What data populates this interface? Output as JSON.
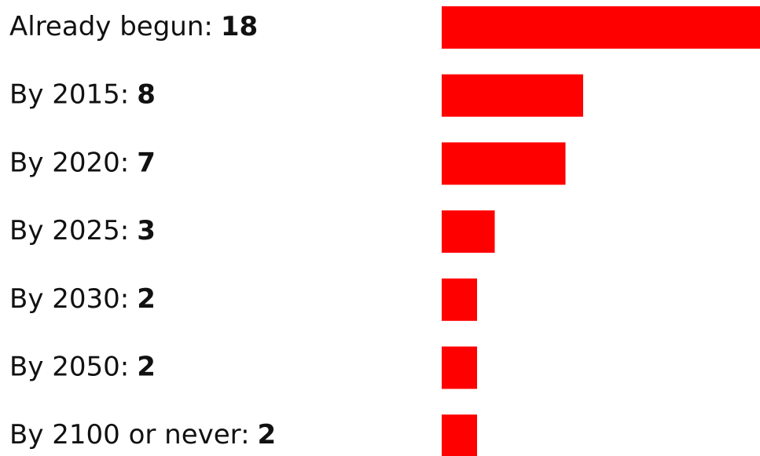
{
  "chart_data": {
    "type": "bar",
    "orientation": "horizontal",
    "categories": [
      "Already begun:",
      "By 2015:",
      "By 2020:",
      "By 2025:",
      "By 2030:",
      "By 2050:",
      "By 2100 or never:"
    ],
    "values": [
      18,
      8,
      7,
      3,
      2,
      2,
      2
    ],
    "color": "#ff0000"
  }
}
